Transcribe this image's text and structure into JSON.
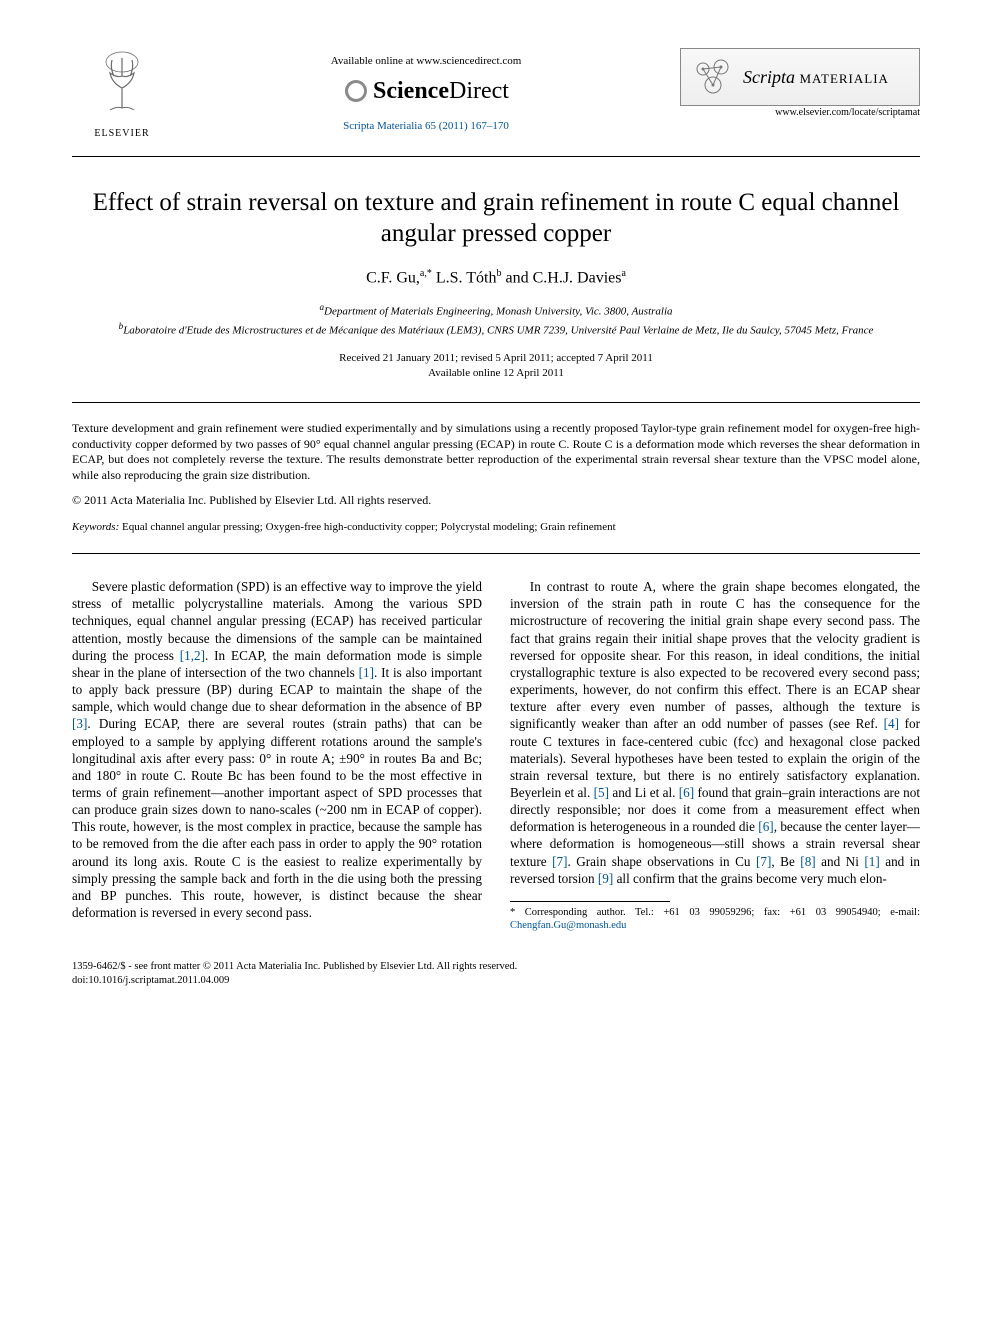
{
  "header": {
    "publisher_label": "ELSEVIER",
    "available_line": "Available online at www.sciencedirect.com",
    "sd_brand_bold": "Science",
    "sd_brand_light": "Direct",
    "citation": "Scripta Materialia 65 (2011) 167–170",
    "journal_name_italic": "Scripta",
    "journal_name_sc": "MATERIALIA",
    "locate": "www.elsevier.com/locate/scriptamat"
  },
  "title": "Effect of strain reversal on texture and grain refinement in route C equal channel angular pressed copper",
  "authors_html": "C.F. Gu,<sup>a,*</sup> L.S. Tóth<sup>b</sup> and C.H.J. Davies<sup>a</sup>",
  "affiliations": {
    "a": "Department of Materials Engineering, Monash University, Vic. 3800, Australia",
    "b": "Laboratoire d'Etude des Microstructures et de Mécanique des Matériaux (LEM3), CNRS UMR 7239, Université Paul Verlaine de Metz, Ile du Saulcy, 57045 Metz, France"
  },
  "dates": {
    "line1": "Received 21 January 2011; revised 5 April 2011; accepted 7 April 2011",
    "line2": "Available online 12 April 2011"
  },
  "abstract": "Texture development and grain refinement were studied experimentally and by simulations using a recently proposed Taylor-type grain refinement model for oxygen-free high-conductivity copper deformed by two passes of 90° equal channel angular pressing (ECAP) in route C. Route C is a deformation mode which reverses the shear deformation in ECAP, but does not completely reverse the texture. The results demonstrate better reproduction of the experimental strain reversal shear texture than the VPSC model alone, while also reproducing the grain size distribution.",
  "copyright_line": "© 2011 Acta Materialia Inc. Published by Elsevier Ltd. All rights reserved.",
  "keywords_label": "Keywords:",
  "keywords": "Equal channel angular pressing; Oxygen-free high-conductivity copper; Polycrystal modeling; Grain refinement",
  "body": {
    "p1a": "Severe plastic deformation (SPD) is an effective way to improve the yield stress of metallic polycrystalline materials. Among the various SPD techniques, equal channel angular pressing (ECAP) has received particular attention, mostly because the dimensions of the sample can be maintained during the process ",
    "r12": "[1,2]",
    "p1b": ". In ECAP, the main deformation mode is simple shear in the plane of intersection of the two channels ",
    "r1": "[1]",
    "p1c": ". It is also important to apply back pressure (BP) during ECAP to maintain the shape of the sample, which would change due to shear deformation in the absence of BP ",
    "r3": "[3]",
    "p1d": ". During ECAP, there are several routes (strain paths) that can be employed to a sample by applying different rotations around the sample's longitudinal axis after every pass: 0° in route A; ±90° in routes Ba and Bc; and 180° in route C. Route Bc has been found to be the most effective in terms of grain refinement—another important aspect of SPD processes that can produce grain sizes down to nano-scales (~200 nm in ECAP of copper). This route, however, is the most complex in practice, because the sample has to be removed from the die after each pass in order to apply the 90° rotation around its long axis. Route C is the easiest to realize experimentally by simply pressing the sample back and forth in the die using both the pressing and BP punches. This route, however, is distinct because the shear deformation is reversed in every second pass.",
    "p2a": "In contrast to route A, where the grain shape becomes elongated, the inversion of the strain path in route C has the consequence for the microstructure of recovering the initial grain shape every second pass. The fact that grains regain their initial shape proves that the velocity gradient is reversed for opposite shear. For this reason, in ideal conditions, the initial crystallographic texture is also expected to be recovered every second pass; experiments, however, do not confirm this effect. There is an ECAP shear texture after every even number of passes, although the texture is significantly weaker than after an odd number of passes (see Ref. ",
    "r4": "[4]",
    "p2b": " for route C textures in face-centered cubic (fcc) and hexagonal close packed materials). Several hypotheses have been tested to explain the origin of the strain reversal texture, but there is no entirely satisfactory explanation. Beyerlein et al. ",
    "r5": "[5]",
    "p2c": " and Li et al. ",
    "r6": "[6]",
    "p2d": " found that grain–grain interactions are not directly responsible; nor does it come from a measurement effect when deformation is heterogeneous in a rounded die ",
    "r6b": "[6]",
    "p2e": ", because the center layer—where deformation is homogeneous—still shows a strain reversal shear texture ",
    "r7": "[7]",
    "p2f": ". Grain shape observations in Cu ",
    "r7b": "[7]",
    "p2g": ", Be ",
    "r8": "[8]",
    "p2h": " and Ni ",
    "r1b": "[1]",
    "p2i": " and in reversed torsion ",
    "r9": "[9]",
    "p2j": " all confirm that the grains become very much elon-"
  },
  "footnote": {
    "label": "* Corresponding author. Tel.: +61 03 99059296; fax: +61 03 99054940; e-mail: ",
    "email": "Chengfan.Gu@monash.edu"
  },
  "footer": {
    "line1": "1359-6462/$ - see front matter © 2011 Acta Materialia Inc. Published by Elsevier Ltd. All rights reserved.",
    "line2": "doi:10.1016/j.scriptamat.2011.04.009"
  },
  "colors": {
    "link": "#005596",
    "text": "#000000",
    "rule": "#000000"
  }
}
